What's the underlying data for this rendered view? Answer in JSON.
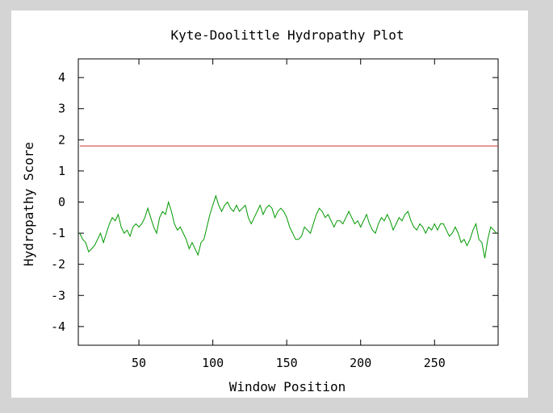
{
  "chart_data": {
    "type": "line",
    "title": "Kyte-Doolittle Hydropathy Plot",
    "xlabel": "Window Position",
    "ylabel": "Hydropathy Score",
    "xlim": [
      9,
      293
    ],
    "ylim": [
      -4.6,
      4.6
    ],
    "xticks": [
      50,
      100,
      150,
      200,
      250
    ],
    "yticks": [
      4,
      3,
      2,
      1,
      0,
      -1,
      -2,
      -3,
      -4
    ],
    "grid": false,
    "threshold": {
      "y": 1.8,
      "color": "#cc3333"
    },
    "series_color": "#009900",
    "series": [
      {
        "x": [
          10,
          12,
          14,
          16,
          18,
          20,
          22,
          24,
          26,
          28,
          30,
          32,
          34,
          36,
          38,
          40,
          42,
          44,
          46,
          48,
          50,
          52,
          54,
          56,
          58,
          60,
          62,
          64,
          66,
          68,
          70,
          72,
          74,
          76,
          78,
          80,
          82,
          84,
          86,
          88,
          90,
          92,
          94,
          96,
          98,
          100,
          102,
          104,
          106,
          108,
          110,
          112,
          114,
          116,
          118,
          120,
          122,
          124,
          126,
          128,
          130,
          132,
          134,
          136,
          138,
          140,
          142,
          144,
          146,
          148,
          150,
          152,
          154,
          156,
          158,
          160,
          162,
          164,
          166,
          168,
          170,
          172,
          174,
          176,
          178,
          180,
          182,
          184,
          186,
          188,
          190,
          192,
          194,
          196,
          198,
          200,
          202,
          204,
          206,
          208,
          210,
          212,
          214,
          216,
          218,
          220,
          222,
          224,
          226,
          228,
          230,
          232,
          234,
          236,
          238,
          240,
          242,
          244,
          246,
          248,
          250,
          252,
          254,
          256,
          258,
          260,
          262,
          264,
          266,
          268,
          270,
          272,
          274,
          276,
          278,
          280,
          282,
          284,
          286,
          288,
          290,
          292
        ],
        "y": [
          -1.0,
          -1.2,
          -1.3,
          -1.6,
          -1.5,
          -1.4,
          -1.2,
          -1.0,
          -1.3,
          -1.0,
          -0.7,
          -0.5,
          -0.6,
          -0.4,
          -0.8,
          -1.0,
          -0.9,
          -1.1,
          -0.8,
          -0.7,
          -0.8,
          -0.7,
          -0.5,
          -0.2,
          -0.5,
          -0.8,
          -1.0,
          -0.5,
          -0.3,
          -0.4,
          0.0,
          -0.3,
          -0.7,
          -0.9,
          -0.8,
          -1.0,
          -1.2,
          -1.5,
          -1.3,
          -1.5,
          -1.7,
          -1.3,
          -1.2,
          -0.8,
          -0.4,
          -0.1,
          0.2,
          -0.1,
          -0.3,
          -0.1,
          0.0,
          -0.2,
          -0.3,
          -0.1,
          -0.3,
          -0.2,
          -0.1,
          -0.5,
          -0.7,
          -0.5,
          -0.3,
          -0.1,
          -0.4,
          -0.2,
          -0.1,
          -0.2,
          -0.5,
          -0.3,
          -0.2,
          -0.3,
          -0.5,
          -0.8,
          -1.0,
          -1.2,
          -1.2,
          -1.1,
          -0.8,
          -0.9,
          -1.0,
          -0.7,
          -0.4,
          -0.2,
          -0.3,
          -0.5,
          -0.4,
          -0.6,
          -0.8,
          -0.6,
          -0.6,
          -0.7,
          -0.5,
          -0.3,
          -0.5,
          -0.7,
          -0.6,
          -0.8,
          -0.6,
          -0.4,
          -0.7,
          -0.9,
          -1.0,
          -0.7,
          -0.5,
          -0.6,
          -0.4,
          -0.6,
          -0.9,
          -0.7,
          -0.5,
          -0.6,
          -0.4,
          -0.3,
          -0.6,
          -0.8,
          -0.9,
          -0.7,
          -0.8,
          -1.0,
          -0.8,
          -0.9,
          -0.7,
          -0.9,
          -0.7,
          -0.7,
          -0.9,
          -1.1,
          -1.0,
          -0.8,
          -1.0,
          -1.3,
          -1.2,
          -1.4,
          -1.2,
          -0.9,
          -0.7,
          -1.2,
          -1.3,
          -1.8,
          -1.2,
          -0.8,
          -0.9,
          -1.0
        ]
      }
    ]
  }
}
